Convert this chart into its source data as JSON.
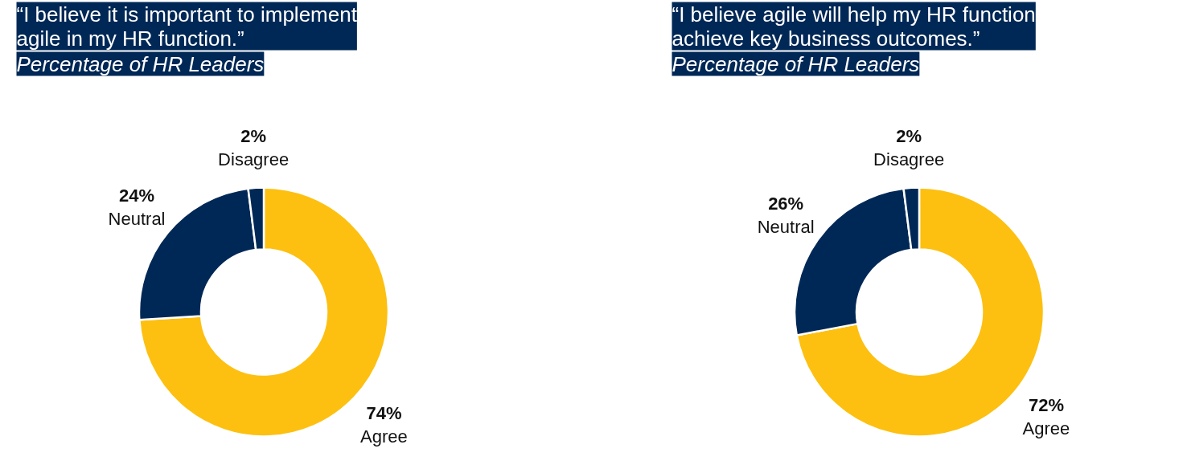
{
  "chart_data": [
    {
      "type": "donut",
      "title": "“I believe it is important to implement agile in my HR function.”",
      "subtitle": "Percentage of HR Leaders",
      "categories": [
        "Agree",
        "Neutral",
        "Disagree"
      ],
      "values": [
        74,
        24,
        2
      ],
      "colors": [
        "#fdc010",
        "#002856",
        "#002856"
      ],
      "value_labels": [
        "74%",
        "24%",
        "2%"
      ]
    },
    {
      "type": "donut",
      "title": "“I believe agile will help my HR function achieve key business outcomes.”",
      "subtitle": "Percentage of HR Leaders",
      "categories": [
        "Agree",
        "Neutral",
        "Disagree"
      ],
      "values": [
        72,
        26,
        2
      ],
      "colors": [
        "#fdc010",
        "#002856",
        "#002856"
      ],
      "value_labels": [
        "72%",
        "26%",
        "2%"
      ]
    }
  ]
}
